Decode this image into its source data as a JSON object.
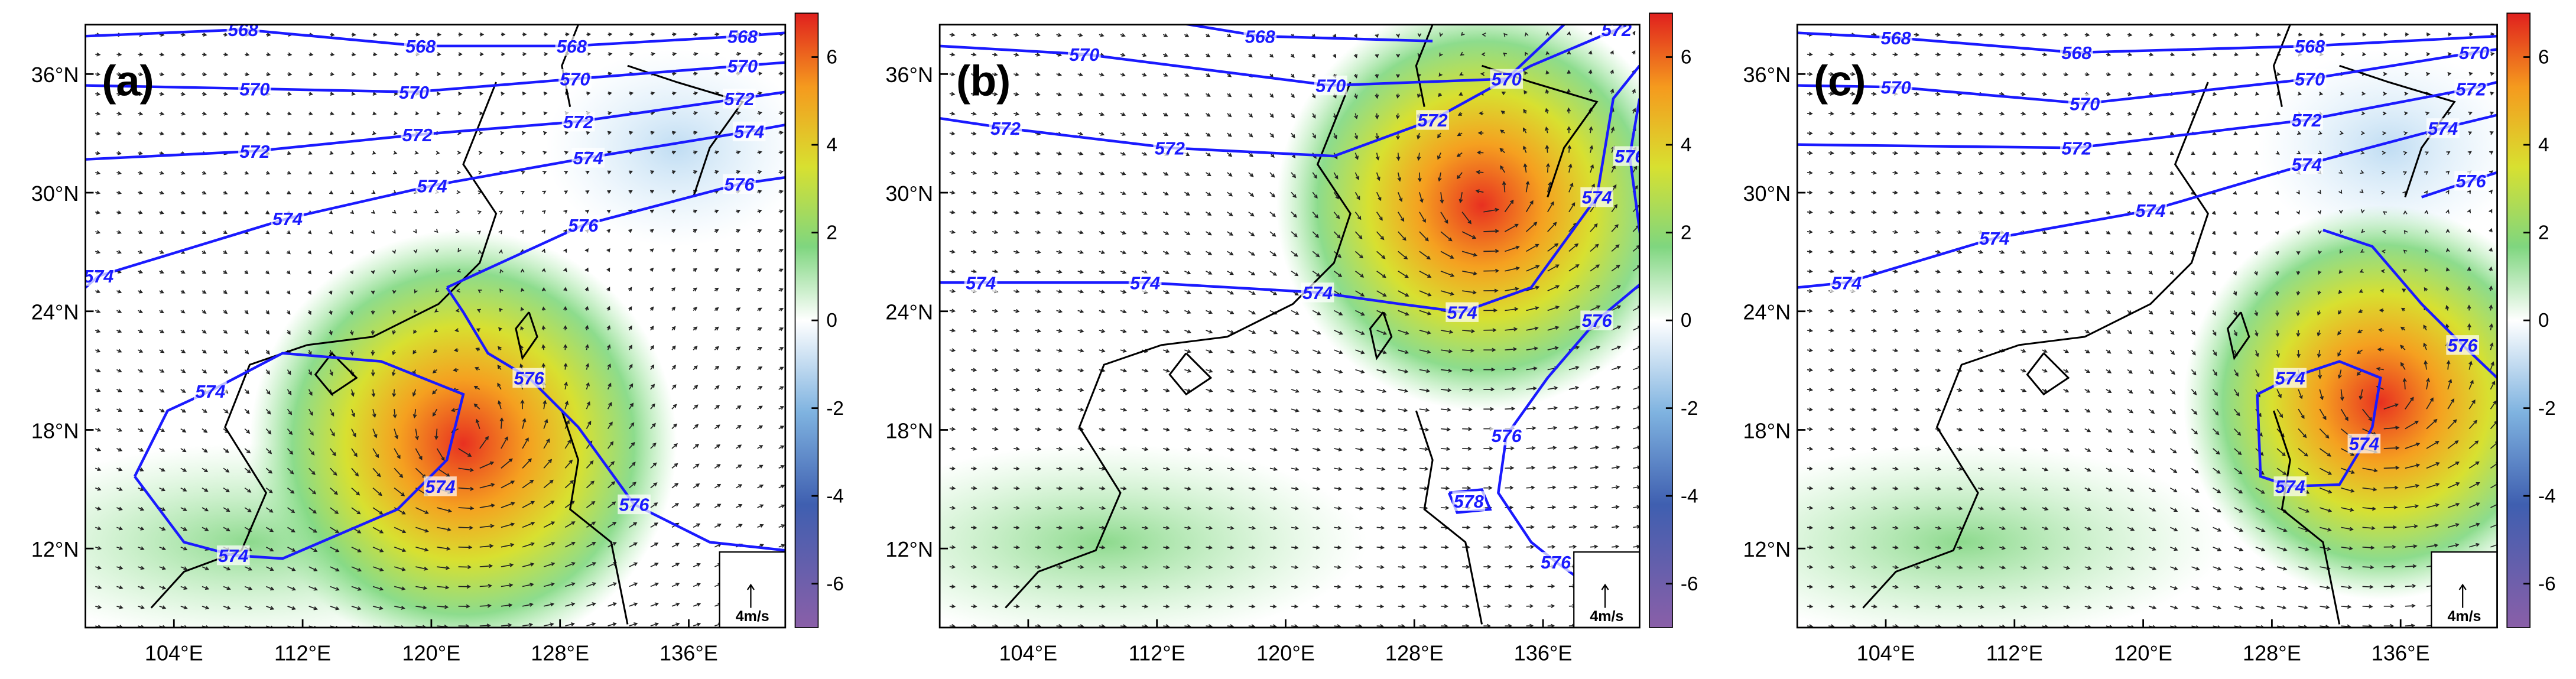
{
  "panels": [
    {
      "label": "(a)",
      "contour_labels": [
        568,
        568,
        568,
        568,
        570,
        570,
        570,
        570,
        572,
        572,
        572,
        572,
        574,
        574,
        574,
        574,
        574,
        576,
        576,
        574,
        574,
        574,
        576,
        576
      ],
      "reference_vector": "4m/s"
    },
    {
      "label": "(b)",
      "contour_labels": [
        568,
        570,
        570,
        570,
        572,
        572,
        572,
        572,
        574,
        574,
        574,
        574,
        574,
        576,
        576,
        576,
        576,
        578
      ],
      "reference_vector": "4m/s"
    },
    {
      "label": "(c)",
      "contour_labels": [
        568,
        568,
        568,
        570,
        570,
        570,
        570,
        572,
        572,
        572,
        574,
        574,
        574,
        574,
        574,
        576,
        576,
        574,
        574,
        574
      ],
      "reference_vector": "4m/s"
    }
  ],
  "x_axis": {
    "lim": [
      98.5,
      142
    ],
    "ticks": [
      {
        "value": 104,
        "label": "104°E"
      },
      {
        "value": 112,
        "label": "112°E"
      },
      {
        "value": 120,
        "label": "120°E"
      },
      {
        "value": 128,
        "label": "128°E"
      },
      {
        "value": 136,
        "label": "136°E"
      }
    ]
  },
  "y_axis": {
    "lim": [
      8,
      38.5
    ],
    "ticks": [
      {
        "value": 12,
        "label": "12°N"
      },
      {
        "value": 18,
        "label": "18°N"
      },
      {
        "value": 24,
        "label": "24°N"
      },
      {
        "value": 30,
        "label": "30°N"
      },
      {
        "value": 36,
        "label": "36°N"
      }
    ]
  },
  "colorbar": {
    "lim": [
      -7,
      7
    ],
    "ticks": [
      6,
      4,
      2,
      0,
      -2,
      -4,
      -6
    ]
  }
}
